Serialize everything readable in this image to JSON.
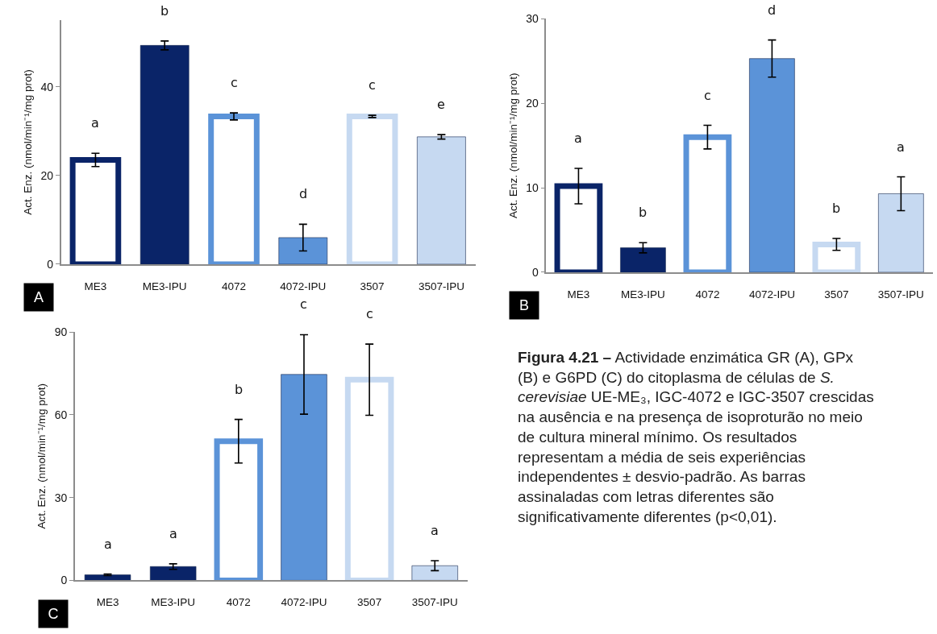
{
  "chart_data": [
    {
      "type": "bar",
      "ylabel": "Act. Enz. (nmol/min⁻¹/mg prot)",
      "categories": [
        "ME3",
        "ME3-IPU",
        "4072",
        "4072-IPU",
        "3507",
        "3507-IPU"
      ],
      "ylim": [
        0,
        55
      ],
      "yticks": [
        0,
        20,
        40
      ],
      "series": [
        {
          "values": [
            23.5,
            null,
            33.3,
            null,
            33.3,
            null
          ],
          "errors": [
            1.5,
            null,
            0.8,
            null,
            0.25,
            null
          ],
          "colors": [
            "#0a2468",
            "#0a2468",
            "#5b93d8",
            "#5b93d8",
            "#c6d9f1",
            "#c6d9f1"
          ]
        },
        {
          "values": [
            null,
            49.3,
            null,
            6,
            null,
            28.7
          ],
          "errors": [
            null,
            1,
            null,
            3,
            null,
            0.5
          ],
          "colors": [
            "#0a2468",
            "#0a2468",
            "#5b93d8",
            "#5b93d8",
            "#c6d9f1",
            "#c6d9f1"
          ]
        }
      ],
      "annotations": [
        "A",
        "a",
        "b",
        "c",
        "d",
        "c",
        "e"
      ]
    },
    {
      "type": "bar",
      "ylabel": "Act. Enz. (nmol/min⁻¹/mg prot)",
      "categories": [
        "ME3",
        "ME3-IPU",
        "4072",
        "4072-IPU",
        "3507",
        "3507-IPU"
      ],
      "ylim": [
        0,
        30
      ],
      "yticks": [
        0,
        10,
        20,
        30
      ],
      "series": [
        {
          "values": [
            10.2,
            null,
            16,
            null,
            3.3,
            null
          ],
          "errors": [
            2.1,
            null,
            1.4,
            null,
            0.7,
            null
          ],
          "colors": [
            "#0a2468",
            "#0a2468",
            "#5b93d8",
            "#5b93d8",
            "#c6d9f1",
            "#c6d9f1"
          ]
        },
        {
          "values": [
            null,
            2.9,
            null,
            25.3,
            null,
            9.3
          ],
          "errors": [
            null,
            0.6,
            null,
            2.2,
            null,
            2
          ],
          "colors": [
            "#0a2468",
            "#0a2468",
            "#5b93d8",
            "#5b93d8",
            "#c6d9f1",
            "#c6d9f1"
          ]
        }
      ],
      "annotations": [
        "B",
        "a",
        "b",
        "c",
        "d",
        "b",
        "a"
      ]
    },
    {
      "type": "bar",
      "ylabel": "Act. Enz. (nmol/min⁻¹/mg prot)",
      "categories": [
        "ME3",
        "ME3-IPU",
        "4072",
        "4072-IPU",
        "3507",
        "3507-IPU"
      ],
      "ylim": [
        0,
        90
      ],
      "yticks": [
        0,
        30,
        60,
        90
      ],
      "series": [
        {
          "values": [
            null,
            null,
            50.4,
            null,
            72.7,
            null
          ],
          "errors": [
            null,
            null,
            7.9,
            null,
            12.9,
            null
          ],
          "colors": [
            "#0a2468",
            "#0a2468",
            "#5b93d8",
            "#5b93d8",
            "#c6d9f1",
            "#c6d9f1"
          ]
        },
        {
          "values": [
            2,
            5,
            null,
            74.6,
            null,
            5.3
          ],
          "errors": [
            0.3,
            1,
            null,
            14.4,
            null,
            1.8
          ],
          "colors": [
            "#0a2468",
            "#0a2468",
            "#5b93d8",
            "#5b93d8",
            "#c6d9f1",
            "#c6d9f1"
          ]
        }
      ],
      "annotations": [
        "C",
        "a",
        "a",
        "b",
        "c",
        "c",
        "a"
      ]
    },
    {
      "type": "other",
      "annotations": [
        "Figura 4.21 –",
        "Actividade enzimática GR (A), GPx (B) e G6PD (C) do citoplasma de células de",
        "S. cerevisiae",
        "UE-ME₃, IGC-4072 e IGC-3507 crescidas na ausência e na presença de isoproturão no meio de cultura mineral mínimo. Os resultados representam a média de seis experiências independentes ± desvio-padrão. As barras assinaladas com letras diferentes são significativamente diferentes (p<0,01)."
      ]
    }
  ]
}
